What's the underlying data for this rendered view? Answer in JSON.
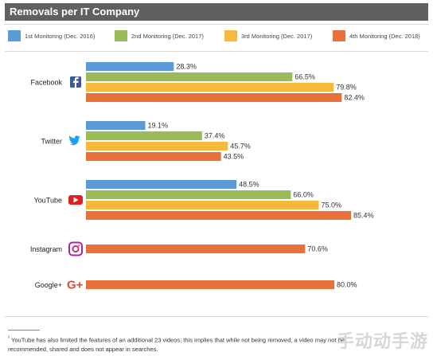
{
  "chart_data": {
    "type": "bar",
    "orientation": "horizontal",
    "title": "Removals per IT Company",
    "categories": [
      "Facebook",
      "Twitter",
      "YouTube",
      "Instagram",
      "Google+"
    ],
    "series": [
      {
        "name": "1st Monitoring (Dec. 2016)",
        "color": "#5b9bd5",
        "values": [
          28.3,
          19.1,
          48.5,
          null,
          null
        ]
      },
      {
        "name": "2nd Monitoring (Dec. 2017)",
        "color": "#9bbb59",
        "values": [
          66.5,
          37.4,
          66.0,
          null,
          null
        ]
      },
      {
        "name": "3rd Monitoring (Dec. 2017)",
        "color": "#f6b93b",
        "values": [
          79.8,
          45.7,
          75.0,
          null,
          null
        ]
      },
      {
        "name": "4th Monitoring (Dec. 2018)",
        "color": "#e8703a",
        "values": [
          82.4,
          43.5,
          85.4,
          70.6,
          80.0
        ]
      }
    ],
    "data_labels": [
      [
        "28.3%",
        "66.5%",
        "79.8%",
        "82.4%"
      ],
      [
        "19.1%",
        "37.4%",
        "45.7%",
        "43.5%"
      ],
      [
        "48.5%",
        "66.0%",
        "75.0%",
        "85.4%"
      ],
      [
        "70.6%"
      ],
      [
        "80.0%"
      ]
    ],
    "xlim": [
      0,
      100
    ],
    "legend_position": "top",
    "grid": false
  },
  "icons": [
    "facebook-icon",
    "twitter-icon",
    "youtube-icon",
    "instagram-icon",
    "google-plus-icon"
  ],
  "footnote": {
    "mark": "²",
    "text": "YouTube has also limited the features of an additional 23 videos; this implies that while not being removed, a video may not be recommended, shared and does not appear in searches."
  },
  "watermark": "手动动手游"
}
